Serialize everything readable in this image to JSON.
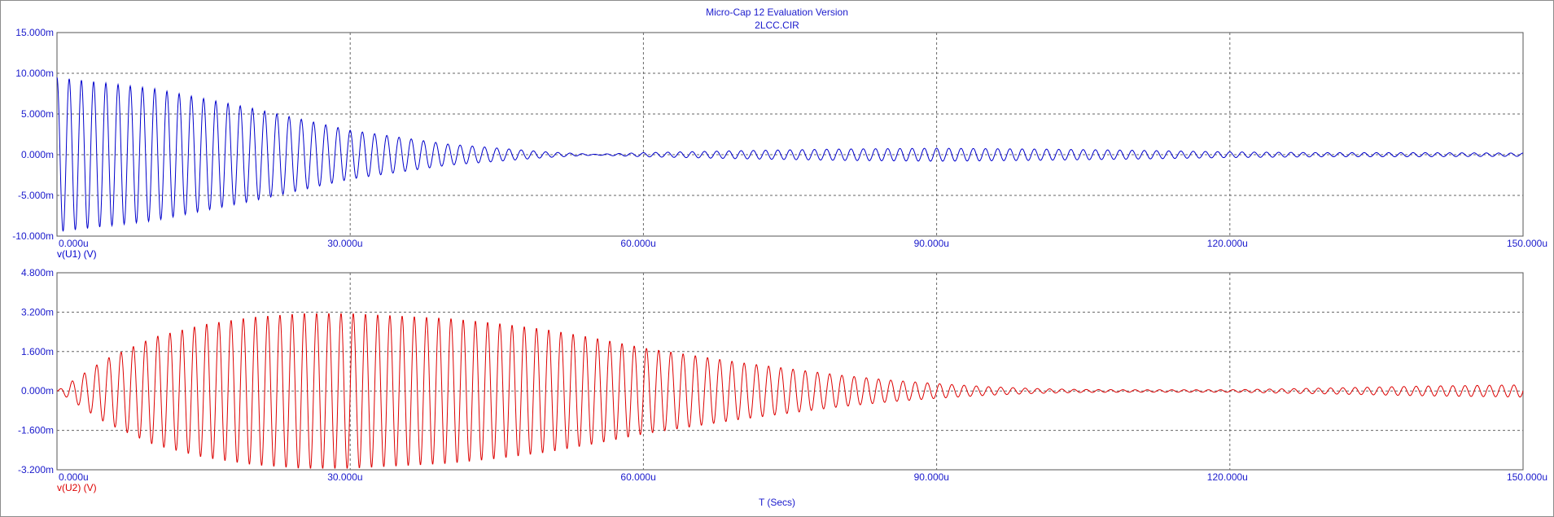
{
  "window": {
    "title": "Micro-Cap 12 Evaluation Version",
    "subtitle": "2LCC.CIR",
    "x_axis_title": "T (Secs)"
  },
  "chart_data": [
    {
      "type": "line",
      "ylabel": "v(U1) (V)",
      "ylim": [
        -0.01,
        0.015
      ],
      "xlim": [
        0,
        0.00015
      ],
      "grid": true,
      "color": "#0000cc",
      "x_tick_labels": [
        "0.000u",
        "30.000u",
        "60.000u",
        "90.000u",
        "120.000u",
        "150.000u"
      ],
      "y_tick_labels": [
        "15.000m",
        "10.000m",
        "5.000m",
        "0.000m",
        "-5.000m",
        "-10.000m"
      ],
      "series": [
        {
          "x_us": [
            0,
            10,
            20,
            30,
            40,
            50,
            55,
            60,
            70,
            80,
            90,
            100,
            110,
            120,
            130,
            140,
            150
          ],
          "envelope_mV": [
            9.5,
            8.1,
            5.7,
            3.0,
            1.3,
            0.35,
            0.05,
            0.25,
            0.5,
            0.7,
            0.8,
            0.7,
            0.55,
            0.35,
            0.25,
            0.25,
            0.2
          ],
          "oscillation_period_us": 1.25
        }
      ]
    },
    {
      "type": "line",
      "ylabel": "v(U2) (V)",
      "ylim": [
        -0.0032,
        0.0048
      ],
      "xlim": [
        0,
        0.00015
      ],
      "grid": true,
      "color": "#dd0000",
      "x_tick_labels": [
        "0.000u",
        "30.000u",
        "60.000u",
        "90.000u",
        "120.000u",
        "150.000u"
      ],
      "y_tick_labels": [
        "4.800m",
        "3.200m",
        "1.600m",
        "0.000m",
        "-1.600m",
        "-3.200m"
      ],
      "series": [
        {
          "x_us": [
            0,
            5,
            10,
            15,
            20,
            25,
            30,
            35,
            40,
            45,
            50,
            55,
            60,
            65,
            70,
            75,
            80,
            85,
            90,
            95,
            100,
            105,
            110,
            115,
            120,
            130,
            140,
            150
          ],
          "envelope_mV": [
            0.0,
            1.3,
            2.2,
            2.7,
            3.0,
            3.15,
            3.15,
            3.05,
            2.95,
            2.75,
            2.5,
            2.15,
            1.75,
            1.45,
            1.15,
            0.9,
            0.65,
            0.45,
            0.3,
            0.18,
            0.1,
            0.06,
            0.05,
            0.05,
            0.05,
            0.12,
            0.2,
            0.25
          ],
          "oscillation_period_us": 1.25
        }
      ]
    }
  ]
}
